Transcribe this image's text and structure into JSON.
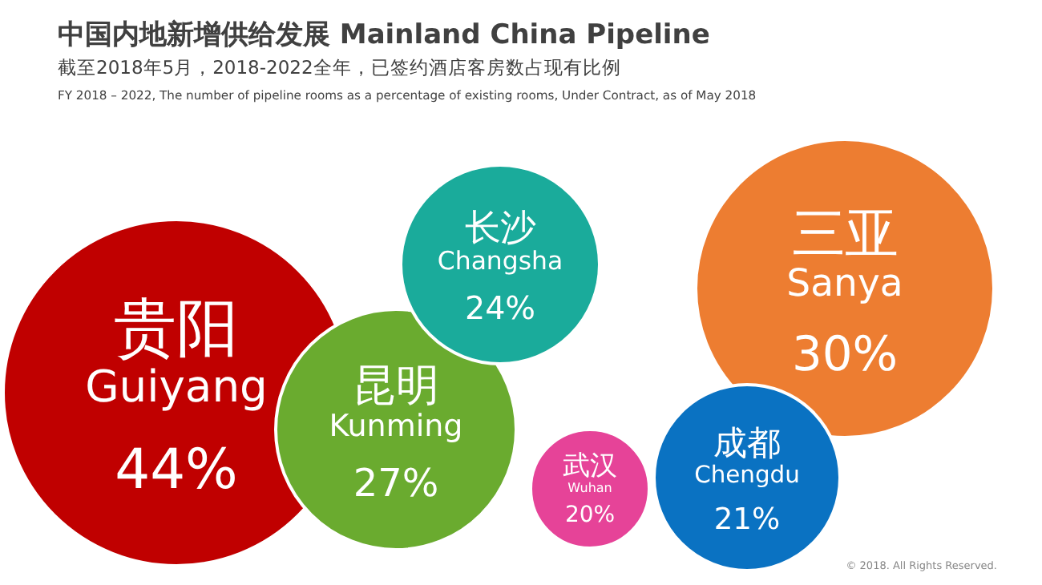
{
  "chart_data": {
    "type": "other",
    "title": "中国内地新增供给发展 Mainland China Pipeline",
    "subtitle": "截至2018年5月，2018-2022全年，已签约酒店客房数占现有比例",
    "annotations": [
      "FY 2018 – 2022, The number of pipeline rooms as a percentage of existing rooms, Under Contract, as of May 2018",
      "© 2018. All Rights Reserved."
    ],
    "categories": [
      "贵阳 Guiyang",
      "昆明 Kunming",
      "长沙 Changsha",
      "三亚 Sanya",
      "武汉 Wuhan",
      "成都 Chengdu"
    ],
    "values": [
      44,
      27,
      24,
      30,
      20,
      21
    ],
    "value_labels": [
      "44%",
      "27%",
      "24%",
      "30%",
      "20%",
      "21%"
    ],
    "colors": [
      "#c00000",
      "#6aab2f",
      "#1aab9b",
      "#ed7d31",
      "#e64398",
      "#0a72c2"
    ]
  }
}
